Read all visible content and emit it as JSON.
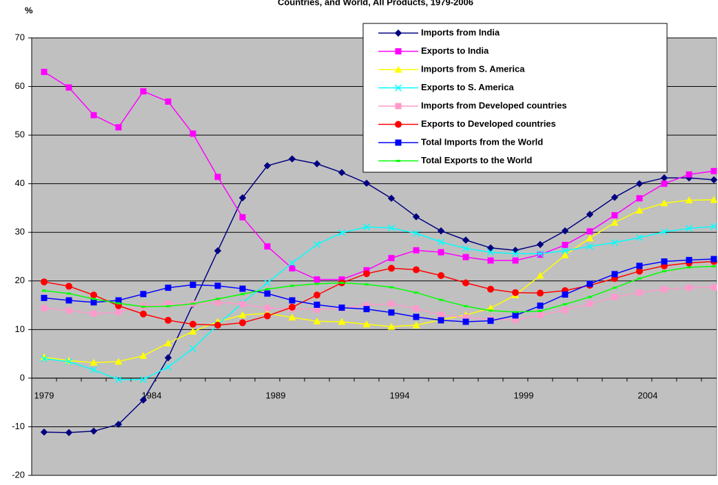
{
  "chart_data": {
    "type": "line",
    "title": "Countries, and World, All Products, 1979-2006",
    "y_label": "%",
    "categories": [
      "1979",
      null,
      null,
      null,
      null,
      "1984",
      null,
      null,
      null,
      null,
      "1989",
      null,
      null,
      null,
      null,
      "1994",
      null,
      null,
      null,
      null,
      "1999",
      null,
      null,
      null,
      null,
      "2004",
      null,
      null
    ],
    "ylim": [
      -20,
      70
    ],
    "yticks": [
      -20,
      -10,
      0,
      10,
      20,
      30,
      40,
      50,
      60,
      70
    ],
    "grid": true,
    "series": [
      {
        "name": "Imports from India",
        "color": "#000080",
        "marker": "diamond",
        "values": [
          -11.1,
          -11.2,
          -10.9,
          -9.5,
          -4.5,
          4.2,
          15.2,
          26.2,
          37.1,
          43.7,
          45.1,
          44.1,
          42.3,
          40.1,
          37.0,
          33.2,
          30.3,
          28.4,
          26.8,
          26.3,
          27.5,
          30.3,
          33.7,
          37.2,
          40.0,
          41.2,
          41.2,
          40.8
        ]
      },
      {
        "name": "Exports to India",
        "color": "#ff00ff",
        "marker": "square",
        "values": [
          63.0,
          59.8,
          54.1,
          51.6,
          59.0,
          56.9,
          50.3,
          41.4,
          33.1,
          27.1,
          22.6,
          20.3,
          20.3,
          22.2,
          24.7,
          26.3,
          25.9,
          24.9,
          24.2,
          24.2,
          25.4,
          27.4,
          30.2,
          33.5,
          37.0,
          40.0,
          41.9,
          42.6
        ]
      },
      {
        "name": "Imports from S. America",
        "color": "#ffff00",
        "marker": "triangle",
        "values": [
          4.3,
          3.6,
          3.2,
          3.4,
          4.6,
          7.2,
          9.6,
          11.6,
          13.0,
          13.3,
          12.5,
          11.7,
          11.6,
          11.1,
          10.6,
          10.9,
          12.0,
          13.0,
          14.4,
          17.1,
          21.1,
          25.3,
          28.8,
          32.0,
          34.5,
          36.0,
          36.6,
          36.7
        ]
      },
      {
        "name": "Exports to S. America",
        "color": "#00ffff",
        "marker": "x",
        "values": [
          4.0,
          3.4,
          1.7,
          -0.3,
          -0.3,
          2.3,
          6.1,
          11.0,
          15.5,
          19.6,
          23.7,
          27.5,
          29.9,
          31.1,
          30.9,
          29.8,
          28.0,
          26.7,
          25.9,
          25.6,
          25.6,
          26.2,
          27.1,
          27.9,
          28.9,
          30.1,
          30.8,
          31.2
        ]
      },
      {
        "name": "Imports from Developed countries",
        "color": "#ff99cc",
        "marker": "square",
        "values": [
          14.4,
          13.9,
          13.3,
          13.6,
          14.8,
          15.3,
          15.3,
          15.6,
          15.2,
          14.4,
          14.3,
          14.1,
          14.4,
          15.0,
          15.3,
          14.3,
          13.0,
          12.5,
          12.1,
          12.0,
          13.0,
          14.0,
          15.3,
          16.7,
          17.6,
          18.3,
          18.6,
          18.7
        ]
      },
      {
        "name": "Exports to Developed countries",
        "color": "#ff0000",
        "marker": "circle",
        "values": [
          19.8,
          18.9,
          17.1,
          14.9,
          13.2,
          11.9,
          11.1,
          10.9,
          11.4,
          12.8,
          14.6,
          17.1,
          19.6,
          21.5,
          22.6,
          22.3,
          21.1,
          19.6,
          18.3,
          17.6,
          17.5,
          18.0,
          19.1,
          20.5,
          22.0,
          23.1,
          23.7,
          24.0
        ]
      },
      {
        "name": "Total Imports from the World",
        "color": "#0000ff",
        "marker": "square",
        "values": [
          16.5,
          16.0,
          15.6,
          16.0,
          17.3,
          18.6,
          19.2,
          19.0,
          18.4,
          17.4,
          16.0,
          15.1,
          14.5,
          14.2,
          13.5,
          12.6,
          11.9,
          11.6,
          11.8,
          12.9,
          14.9,
          17.2,
          19.4,
          21.4,
          23.1,
          24.0,
          24.3,
          24.5
        ]
      },
      {
        "name": "Total Exports to the World",
        "color": "#00ff00",
        "marker": "dash",
        "values": [
          18.0,
          17.4,
          16.3,
          15.4,
          14.7,
          14.8,
          15.3,
          16.3,
          17.3,
          18.3,
          19.0,
          19.4,
          19.6,
          19.3,
          18.7,
          17.6,
          16.1,
          14.8,
          13.9,
          13.6,
          13.8,
          15.2,
          16.7,
          18.6,
          20.5,
          22.0,
          22.8,
          23.0
        ]
      }
    ]
  }
}
